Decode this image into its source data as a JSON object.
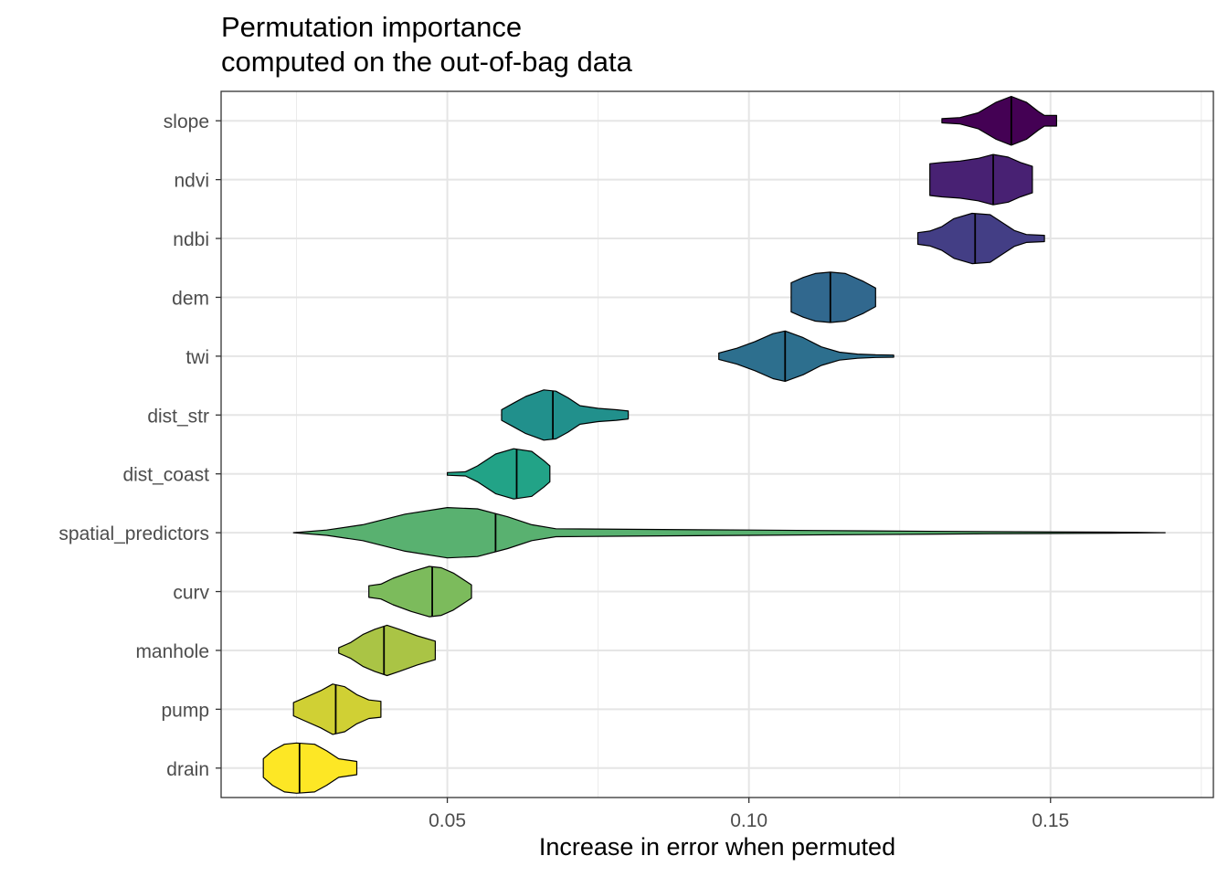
{
  "chart_data": {
    "type": "violin",
    "title": "Permutation importance\ncomputed on the out-of-bag data",
    "title_lines": [
      "Permutation importance",
      "computed on the out-of-bag data"
    ],
    "xlabel": "Increase in error when permuted",
    "ylabel": "",
    "xlim": [
      0.0125,
      0.177
    ],
    "x_ticks": [
      0.05,
      0.1,
      0.15
    ],
    "x_tick_labels": [
      "0.05",
      "0.10",
      "0.15"
    ],
    "grid": true,
    "legend": "none",
    "categories": [
      "slope",
      "ndvi",
      "ndbi",
      "dem",
      "twi",
      "dist_str",
      "dist_coast",
      "spatial_predictors",
      "curv",
      "manhole",
      "pump",
      "drain"
    ],
    "series": [
      {
        "category": "slope",
        "color": "#440154",
        "median": 0.1435,
        "profile": [
          [
            0.132,
            0.08
          ],
          [
            0.135,
            0.12
          ],
          [
            0.138,
            0.3
          ],
          [
            0.141,
            0.7
          ],
          [
            0.1435,
            0.92
          ],
          [
            0.146,
            0.7
          ],
          [
            0.148,
            0.35
          ],
          [
            0.149,
            0.2
          ],
          [
            0.151,
            0.2
          ]
        ]
      },
      {
        "category": "ndvi",
        "color": "#482173",
        "median": 0.1405,
        "profile": [
          [
            0.13,
            0.6
          ],
          [
            0.132,
            0.65
          ],
          [
            0.135,
            0.7
          ],
          [
            0.138,
            0.8
          ],
          [
            0.1405,
            0.95
          ],
          [
            0.143,
            0.85
          ],
          [
            0.145,
            0.65
          ],
          [
            0.147,
            0.5
          ]
        ]
      },
      {
        "category": "ndbi",
        "color": "#433E85",
        "median": 0.1375,
        "profile": [
          [
            0.128,
            0.22
          ],
          [
            0.13,
            0.28
          ],
          [
            0.132,
            0.45
          ],
          [
            0.134,
            0.75
          ],
          [
            0.137,
            0.95
          ],
          [
            0.14,
            0.9
          ],
          [
            0.142,
            0.6
          ],
          [
            0.144,
            0.3
          ],
          [
            0.146,
            0.15
          ],
          [
            0.149,
            0.12
          ]
        ]
      },
      {
        "category": "dem",
        "color": "#31688E",
        "median": 0.1135,
        "profile": [
          [
            0.107,
            0.55
          ],
          [
            0.109,
            0.75
          ],
          [
            0.111,
            0.9
          ],
          [
            0.1135,
            0.95
          ],
          [
            0.116,
            0.9
          ],
          [
            0.119,
            0.6
          ],
          [
            0.121,
            0.35
          ]
        ]
      },
      {
        "category": "twi",
        "color": "#2D6F8E",
        "median": 0.106,
        "profile": [
          [
            0.095,
            0.12
          ],
          [
            0.098,
            0.3
          ],
          [
            0.101,
            0.55
          ],
          [
            0.104,
            0.85
          ],
          [
            0.106,
            0.95
          ],
          [
            0.109,
            0.7
          ],
          [
            0.112,
            0.35
          ],
          [
            0.115,
            0.15
          ],
          [
            0.118,
            0.08
          ],
          [
            0.121,
            0.05
          ],
          [
            0.124,
            0.04
          ]
        ]
      },
      {
        "category": "dist_str",
        "color": "#21908C",
        "median": 0.0675,
        "profile": [
          [
            0.059,
            0.2
          ],
          [
            0.061,
            0.45
          ],
          [
            0.063,
            0.7
          ],
          [
            0.066,
            0.95
          ],
          [
            0.068,
            0.9
          ],
          [
            0.07,
            0.65
          ],
          [
            0.072,
            0.35
          ],
          [
            0.075,
            0.25
          ],
          [
            0.078,
            0.2
          ],
          [
            0.08,
            0.15
          ]
        ]
      },
      {
        "category": "dist_coast",
        "color": "#22A387",
        "median": 0.0615,
        "profile": [
          [
            0.05,
            0.05
          ],
          [
            0.053,
            0.08
          ],
          [
            0.055,
            0.3
          ],
          [
            0.058,
            0.75
          ],
          [
            0.061,
            0.95
          ],
          [
            0.064,
            0.85
          ],
          [
            0.066,
            0.5
          ],
          [
            0.067,
            0.3
          ]
        ]
      },
      {
        "category": "spatial_predictors",
        "color": "#59B170",
        "median": 0.058,
        "profile": [
          [
            0.0245,
            0.0
          ],
          [
            0.03,
            0.1
          ],
          [
            0.036,
            0.3
          ],
          [
            0.043,
            0.7
          ],
          [
            0.05,
            0.95
          ],
          [
            0.055,
            0.9
          ],
          [
            0.06,
            0.6
          ],
          [
            0.064,
            0.3
          ],
          [
            0.068,
            0.15
          ],
          [
            0.08,
            0.13
          ],
          [
            0.1,
            0.1
          ],
          [
            0.12,
            0.07
          ],
          [
            0.14,
            0.04
          ],
          [
            0.16,
            0.02
          ],
          [
            0.169,
            0.0
          ]
        ]
      },
      {
        "category": "curv",
        "color": "#7CBB5C",
        "median": 0.0475,
        "profile": [
          [
            0.037,
            0.22
          ],
          [
            0.039,
            0.28
          ],
          [
            0.041,
            0.5
          ],
          [
            0.044,
            0.75
          ],
          [
            0.047,
            0.95
          ],
          [
            0.049,
            0.9
          ],
          [
            0.051,
            0.7
          ],
          [
            0.053,
            0.4
          ],
          [
            0.054,
            0.25
          ]
        ]
      },
      {
        "category": "manhole",
        "color": "#AAC445",
        "median": 0.0395,
        "profile": [
          [
            0.032,
            0.1
          ],
          [
            0.034,
            0.3
          ],
          [
            0.036,
            0.6
          ],
          [
            0.038,
            0.8
          ],
          [
            0.04,
            0.95
          ],
          [
            0.042,
            0.8
          ],
          [
            0.045,
            0.55
          ],
          [
            0.048,
            0.35
          ]
        ]
      },
      {
        "category": "pump",
        "color": "#D0D034",
        "median": 0.0315,
        "profile": [
          [
            0.0245,
            0.25
          ],
          [
            0.026,
            0.4
          ],
          [
            0.029,
            0.7
          ],
          [
            0.031,
            0.95
          ],
          [
            0.033,
            0.85
          ],
          [
            0.035,
            0.55
          ],
          [
            0.037,
            0.35
          ],
          [
            0.039,
            0.3
          ]
        ]
      },
      {
        "category": "drain",
        "color": "#FDE725",
        "median": 0.0255,
        "profile": [
          [
            0.0195,
            0.35
          ],
          [
            0.021,
            0.65
          ],
          [
            0.023,
            0.9
          ],
          [
            0.025,
            0.95
          ],
          [
            0.028,
            0.9
          ],
          [
            0.03,
            0.65
          ],
          [
            0.032,
            0.35
          ],
          [
            0.035,
            0.25
          ]
        ]
      }
    ]
  }
}
